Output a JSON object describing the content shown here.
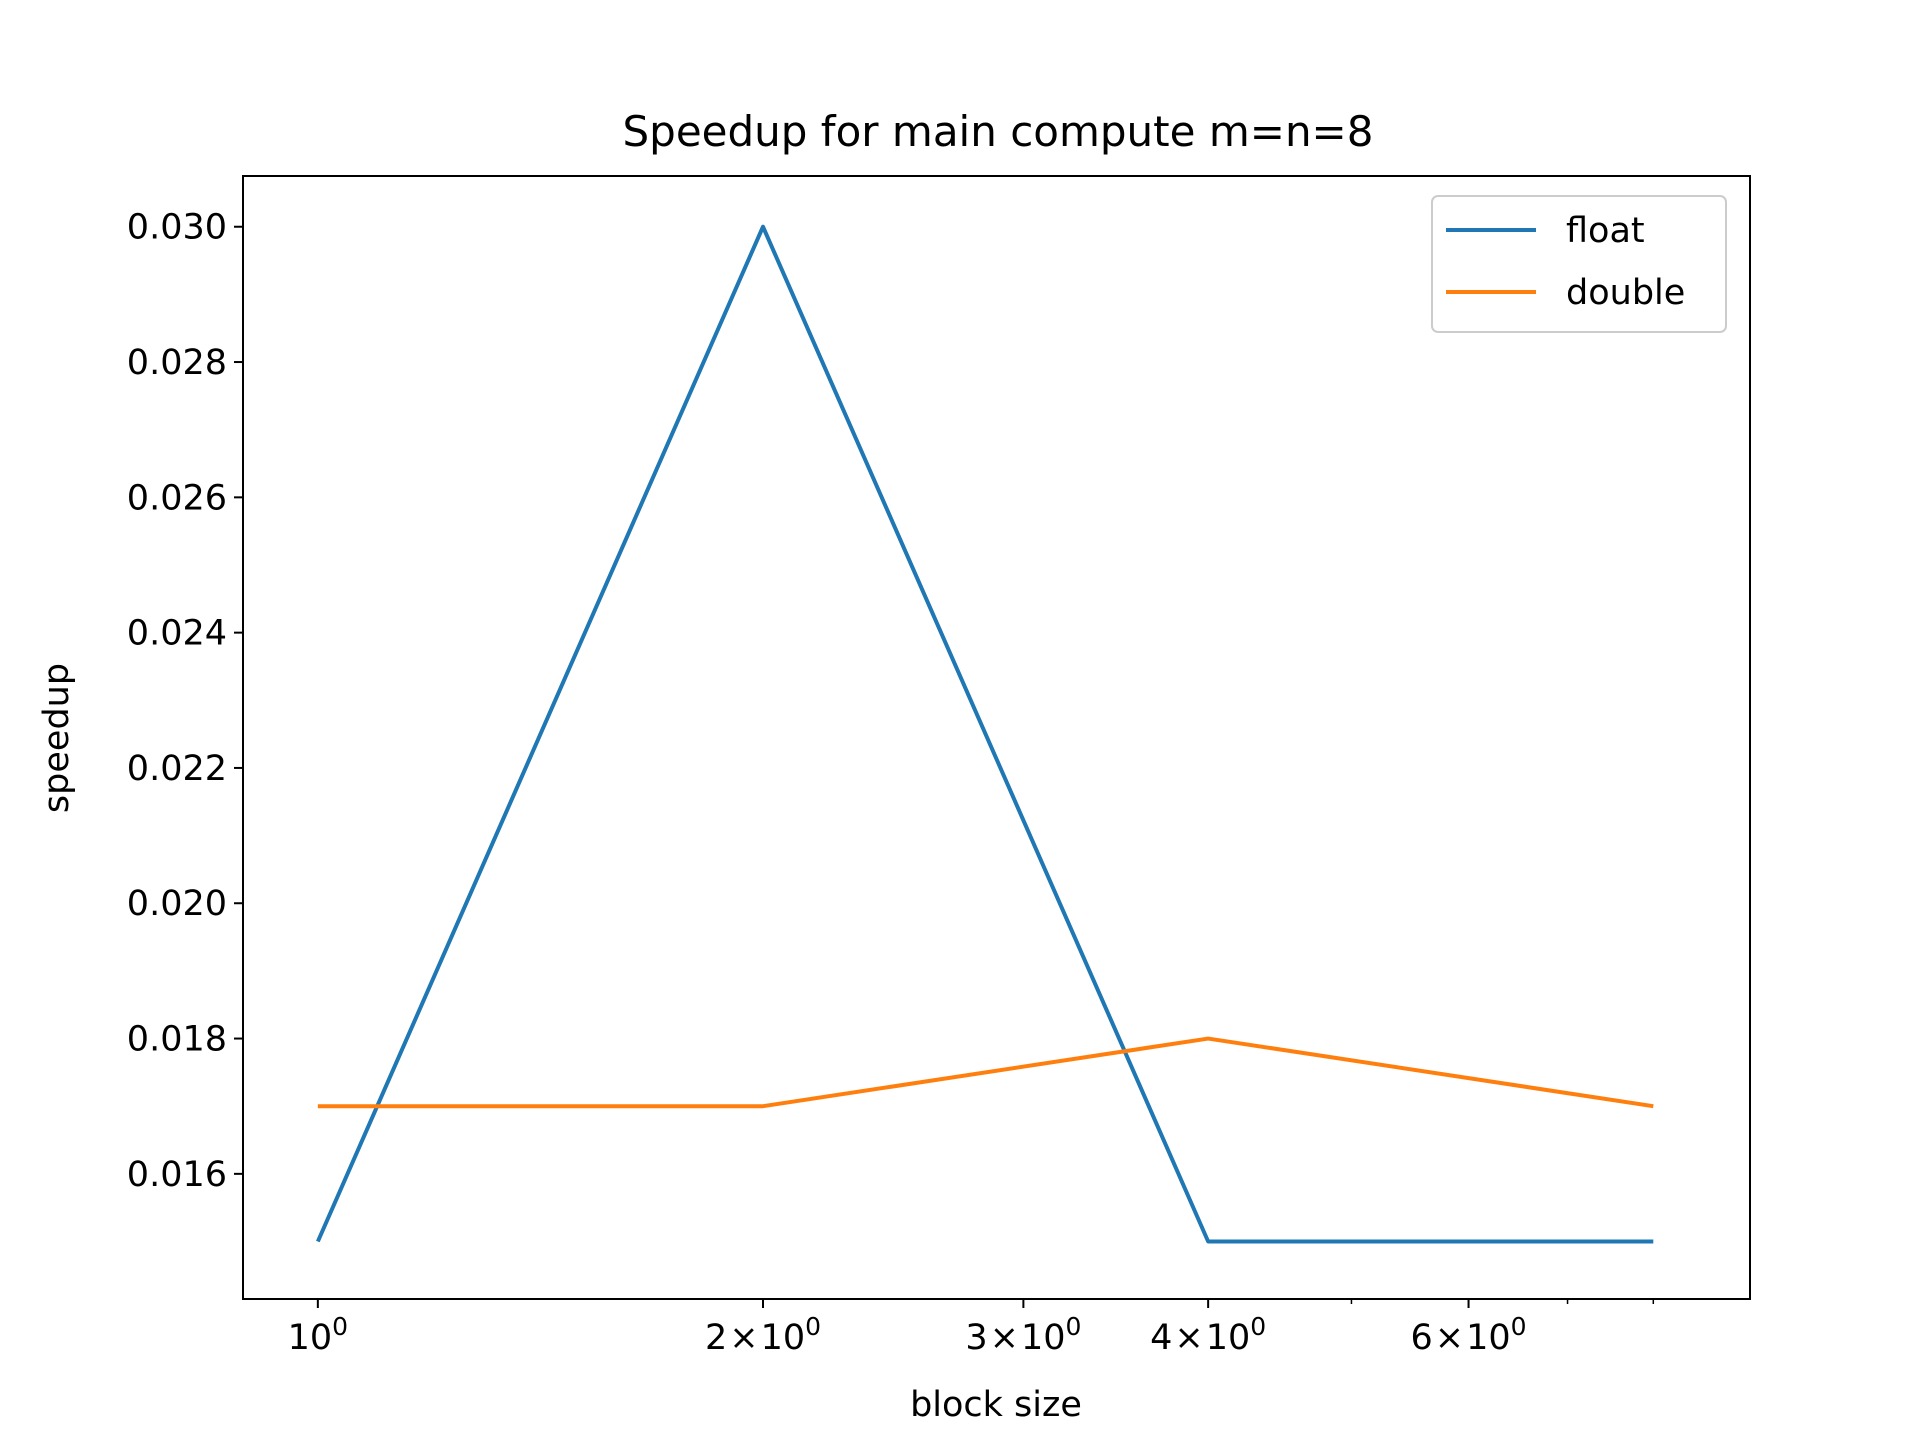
{
  "chart_data": {
    "type": "line",
    "title": "Speedup for main compute m=n=8",
    "xlabel": "block size",
    "ylabel": "speedup",
    "xscale": "log",
    "x": [
      1,
      2,
      4,
      8
    ],
    "xlim": [
      0.89,
      9.3
    ],
    "ylim": [
      0.01415,
      0.03075
    ],
    "xticks": [
      {
        "value": 1,
        "label_base": "10",
        "label_exp": "0",
        "label_mult": ""
      },
      {
        "value": 2,
        "label_base": "10",
        "label_exp": "0",
        "label_mult": "2"
      },
      {
        "value": 3,
        "label_base": "10",
        "label_exp": "0",
        "label_mult": "3"
      },
      {
        "value": 4,
        "label_base": "10",
        "label_exp": "0",
        "label_mult": "4"
      },
      {
        "value": 6,
        "label_base": "10",
        "label_exp": "0",
        "label_mult": "6"
      }
    ],
    "xminor_ticks": [
      5,
      7,
      8
    ],
    "yticks": [
      {
        "value": 0.016,
        "label": "0.016"
      },
      {
        "value": 0.018,
        "label": "0.018"
      },
      {
        "value": 0.02,
        "label": "0.020"
      },
      {
        "value": 0.022,
        "label": "0.022"
      },
      {
        "value": 0.024,
        "label": "0.024"
      },
      {
        "value": 0.026,
        "label": "0.026"
      },
      {
        "value": 0.028,
        "label": "0.028"
      },
      {
        "value": 0.03,
        "label": "0.030"
      }
    ],
    "series": [
      {
        "name": "float",
        "color": "#1f77b4",
        "values": [
          0.015,
          0.03,
          0.015,
          0.015
        ]
      },
      {
        "name": "double",
        "color": "#ff7f0e",
        "values": [
          0.017,
          0.017,
          0.018,
          0.017
        ]
      }
    ],
    "legend": {
      "position": "top-right"
    },
    "grid": false
  }
}
